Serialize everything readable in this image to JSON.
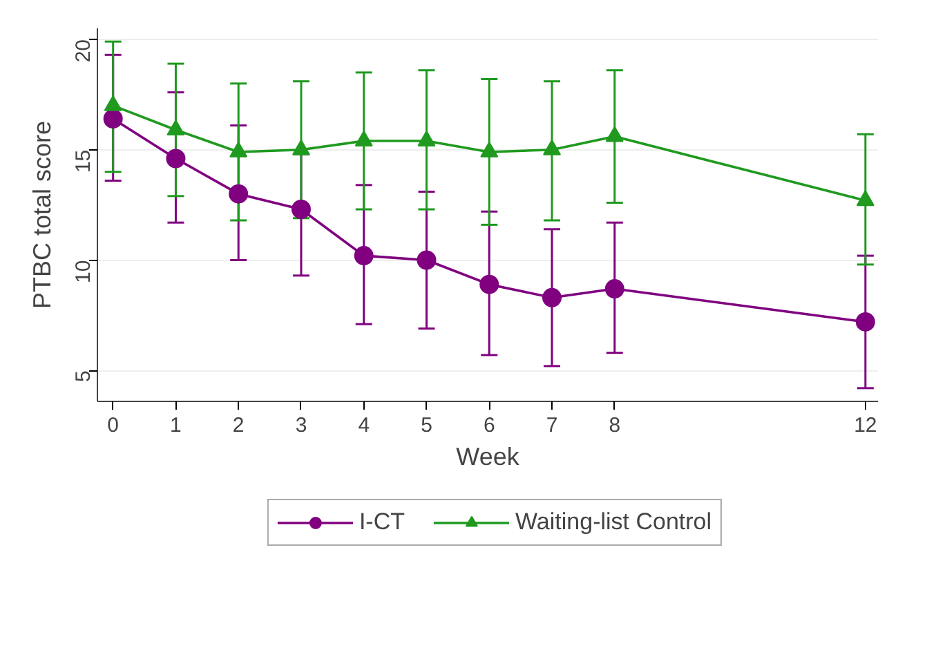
{
  "chart_data": {
    "type": "line",
    "xlabel": "Week",
    "ylabel": "PTBC total score",
    "x": [
      0,
      1,
      2,
      3,
      4,
      5,
      6,
      7,
      8,
      12
    ],
    "xlim": [
      -0.25,
      12.2
    ],
    "xticks": [
      0,
      1,
      2,
      3,
      4,
      5,
      6,
      7,
      8,
      12
    ],
    "ylim": [
      3.6,
      20.5
    ],
    "yticks": [
      5,
      10,
      15,
      20
    ],
    "grid": "y",
    "legend": "bottom",
    "line_style": "solid",
    "series": [
      {
        "name": "I-CT",
        "color": "#800080",
        "marker": "circle",
        "values": [
          16.4,
          14.6,
          13.0,
          12.3,
          10.2,
          10.0,
          8.9,
          8.3,
          8.7,
          7.2
        ],
        "errors": [
          [
            13.6,
            19.3
          ],
          [
            11.7,
            17.6
          ],
          [
            10.0,
            16.1
          ],
          [
            9.3,
            14.8
          ],
          [
            7.1,
            13.4
          ],
          [
            6.9,
            13.1
          ],
          [
            5.7,
            12.2
          ],
          [
            5.2,
            11.4
          ],
          [
            5.8,
            11.7
          ],
          [
            4.2,
            10.2
          ]
        ]
      },
      {
        "name": "Waiting-list Control",
        "color": "#1f9a1f",
        "marker": "triangle",
        "values": [
          17.0,
          15.9,
          14.9,
          15.0,
          15.4,
          15.4,
          14.9,
          15.0,
          15.6,
          12.7
        ],
        "errors": [
          [
            14.0,
            19.9
          ],
          [
            12.9,
            18.9
          ],
          [
            11.8,
            18.0
          ],
          [
            11.9,
            18.1
          ],
          [
            12.3,
            18.5
          ],
          [
            12.3,
            18.6
          ],
          [
            11.6,
            18.2
          ],
          [
            11.8,
            18.1
          ],
          [
            12.6,
            18.6
          ],
          [
            9.8,
            15.7
          ]
        ]
      }
    ]
  }
}
